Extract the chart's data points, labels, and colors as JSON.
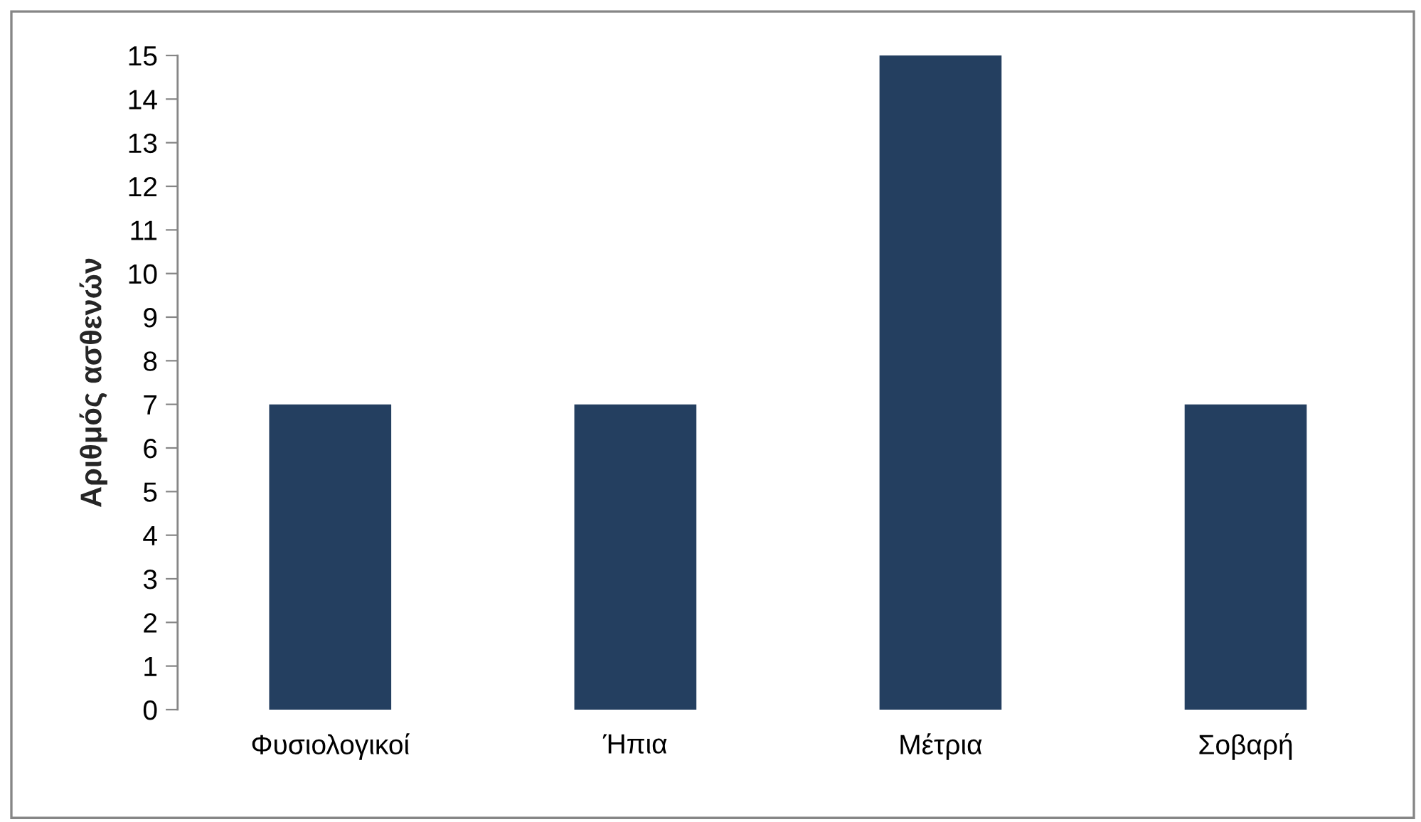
{
  "chart_data": {
    "type": "bar",
    "ylabel": "Αριθμός ασθενών",
    "categories": [
      "Φυσιολογικοί",
      "Ήπια",
      "Μέτρια",
      "Σοβαρή"
    ],
    "values": [
      7,
      7,
      15,
      7
    ],
    "color": "#243f60",
    "ylim": [
      0,
      15
    ],
    "yticks": [
      0,
      1,
      2,
      3,
      4,
      5,
      6,
      7,
      8,
      9,
      10,
      11,
      12,
      13,
      14,
      15
    ],
    "grid": false,
    "legend": false
  }
}
